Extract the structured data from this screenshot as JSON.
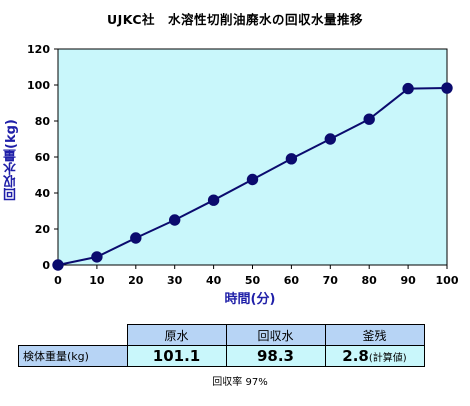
{
  "chart_data": {
    "type": "line",
    "title": "UJKC社　水溶性切削油廃水の回収水量推移",
    "xlabel": "時間(分)",
    "ylabel": "回収水量(kg)",
    "xlim": [
      0,
      100
    ],
    "ylim": [
      0,
      120
    ],
    "xticks": [
      0,
      10,
      20,
      30,
      40,
      50,
      60,
      70,
      80,
      90,
      100
    ],
    "yticks": [
      0,
      20,
      40,
      60,
      80,
      100,
      120
    ],
    "grid": false,
    "plot_background": "#c9f7fb",
    "series": [
      {
        "color": "#0b0b6e",
        "x": [
          0,
          10,
          20,
          30,
          40,
          50,
          60,
          70,
          80,
          90,
          100
        ],
        "y": [
          0,
          4.5,
          15,
          25,
          36,
          47.5,
          59,
          70,
          81,
          98,
          98.3
        ]
      }
    ]
  },
  "table": {
    "headers": [
      "原水",
      "回収水",
      "釜残"
    ],
    "row_label": "検体重量(kg)",
    "values": [
      "101.1",
      "98.3",
      "2.8"
    ],
    "note": "(計算値)"
  },
  "recovery_text": "回収率 97%"
}
